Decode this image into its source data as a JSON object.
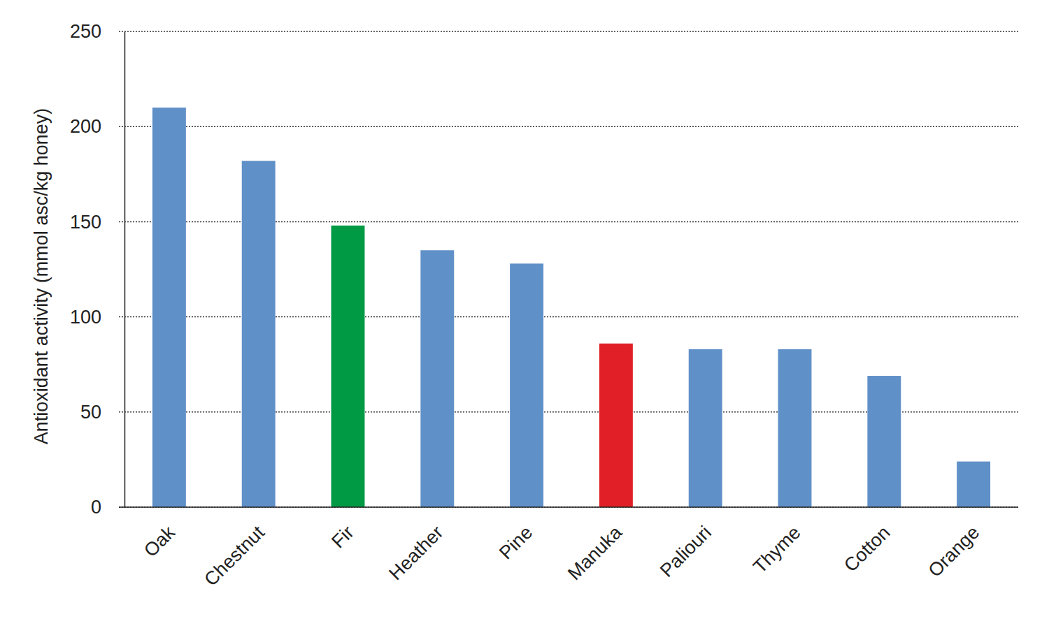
{
  "chart_data": {
    "type": "bar",
    "y_label": "Antioxidant activity (mmol asc/kg honey)",
    "categories": [
      "Oak",
      "Chestnut",
      "Fir",
      "Heather",
      "Pine",
      "Manuka",
      "Paliouri",
      "Thyme",
      "Cotton",
      "Orange"
    ],
    "values": [
      210,
      182,
      148,
      135,
      128,
      86,
      83,
      83,
      69,
      24
    ],
    "colors": [
      "#6090c8",
      "#6090c8",
      "#009a44",
      "#6090c8",
      "#6090c8",
      "#e02026",
      "#6090c8",
      "#6090c8",
      "#6090c8",
      "#6090c8"
    ],
    "ylim": [
      0,
      250
    ],
    "yticks": [
      0,
      50,
      100,
      150,
      200,
      250
    ],
    "grid": true
  }
}
